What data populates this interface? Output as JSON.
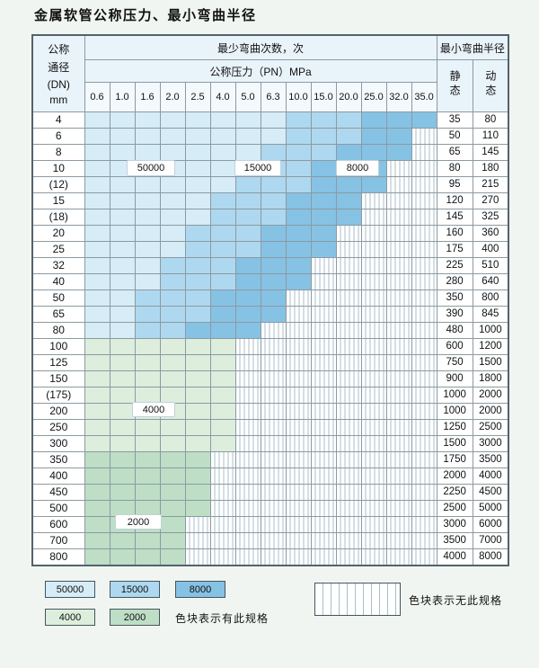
{
  "page": {
    "title": "金属软管公称压力、最小弯曲半径"
  },
  "colors": {
    "zones": {
      "50000": "#d6ecf7",
      "15000": "#aed8ef",
      "8000": "#86c2e4",
      "4000": "#ddeedd",
      "2000": "#bedec6"
    },
    "hatch_line": "#a9bfca",
    "grid_line": "#8c9aa2",
    "header_bg": "#e9f3fa",
    "page_bg": "#f1f5f1"
  },
  "table": {
    "header": {
      "dn_lines": [
        "公称",
        "通径",
        "(DN)",
        "mm"
      ],
      "bend_times_title": "最少弯曲次数，次",
      "pressure_title": "公称压力（PN）MPa",
      "pressures": [
        "0.6",
        "1.0",
        "1.6",
        "2.0",
        "2.5",
        "4.0",
        "5.0",
        "6.3",
        "10.0",
        "15.0",
        "20.0",
        "25.0",
        "32.0",
        "35.0"
      ],
      "radius_title": "最小弯曲半径",
      "static_label": "静态",
      "dynamic_label": "动态"
    },
    "rows": [
      {
        "dn": "4",
        "static": "35",
        "dynamic": "80",
        "zones": [
          [
            "50000",
            1,
            8
          ],
          [
            "15000",
            9,
            11
          ],
          [
            "8000",
            12,
            14
          ]
        ]
      },
      {
        "dn": "6",
        "static": "50",
        "dynamic": "110",
        "zones": [
          [
            "50000",
            1,
            8
          ],
          [
            "15000",
            9,
            11
          ],
          [
            "8000",
            12,
            13
          ]
        ]
      },
      {
        "dn": "8",
        "static": "65",
        "dynamic": "145",
        "zones": [
          [
            "50000",
            1,
            7
          ],
          [
            "15000",
            8,
            10
          ],
          [
            "8000",
            11,
            13
          ]
        ]
      },
      {
        "dn": "10",
        "static": "80",
        "dynamic": "180",
        "zones": [
          [
            "50000",
            1,
            6
          ],
          [
            "15000",
            7,
            9
          ],
          [
            "8000",
            10,
            12
          ]
        ]
      },
      {
        "dn": "(12)",
        "static": "95",
        "dynamic": "215",
        "zones": [
          [
            "50000",
            1,
            6
          ],
          [
            "15000",
            7,
            9
          ],
          [
            "8000",
            10,
            12
          ]
        ]
      },
      {
        "dn": "15",
        "static": "120",
        "dynamic": "270",
        "zones": [
          [
            "50000",
            1,
            5
          ],
          [
            "15000",
            6,
            8
          ],
          [
            "8000",
            9,
            11
          ]
        ]
      },
      {
        "dn": "(18)",
        "static": "145",
        "dynamic": "325",
        "zones": [
          [
            "50000",
            1,
            5
          ],
          [
            "15000",
            6,
            8
          ],
          [
            "8000",
            9,
            11
          ]
        ]
      },
      {
        "dn": "20",
        "static": "160",
        "dynamic": "360",
        "zones": [
          [
            "50000",
            1,
            4
          ],
          [
            "15000",
            5,
            7
          ],
          [
            "8000",
            8,
            10
          ]
        ]
      },
      {
        "dn": "25",
        "static": "175",
        "dynamic": "400",
        "zones": [
          [
            "50000",
            1,
            4
          ],
          [
            "15000",
            5,
            7
          ],
          [
            "8000",
            8,
            10
          ]
        ]
      },
      {
        "dn": "32",
        "static": "225",
        "dynamic": "510",
        "zones": [
          [
            "50000",
            1,
            3
          ],
          [
            "15000",
            4,
            6
          ],
          [
            "8000",
            7,
            9
          ]
        ]
      },
      {
        "dn": "40",
        "static": "280",
        "dynamic": "640",
        "zones": [
          [
            "50000",
            1,
            3
          ],
          [
            "15000",
            4,
            6
          ],
          [
            "8000",
            7,
            9
          ]
        ]
      },
      {
        "dn": "50",
        "static": "350",
        "dynamic": "800",
        "zones": [
          [
            "50000",
            1,
            2
          ],
          [
            "15000",
            3,
            5
          ],
          [
            "8000",
            6,
            8
          ]
        ]
      },
      {
        "dn": "65",
        "static": "390",
        "dynamic": "845",
        "zones": [
          [
            "50000",
            1,
            2
          ],
          [
            "15000",
            3,
            5
          ],
          [
            "8000",
            6,
            8
          ]
        ]
      },
      {
        "dn": "80",
        "static": "480",
        "dynamic": "1000",
        "zones": [
          [
            "50000",
            1,
            2
          ],
          [
            "15000",
            3,
            4
          ],
          [
            "8000",
            5,
            7
          ]
        ]
      },
      {
        "dn": "100",
        "static": "600",
        "dynamic": "1200",
        "zones": [
          [
            "4000",
            1,
            6
          ]
        ]
      },
      {
        "dn": "125",
        "static": "750",
        "dynamic": "1500",
        "zones": [
          [
            "4000",
            1,
            6
          ]
        ]
      },
      {
        "dn": "150",
        "static": "900",
        "dynamic": "1800",
        "zones": [
          [
            "4000",
            1,
            6
          ]
        ]
      },
      {
        "dn": "(175)",
        "static": "1000",
        "dynamic": "2000",
        "zones": [
          [
            "4000",
            1,
            6
          ]
        ]
      },
      {
        "dn": "200",
        "static": "1000",
        "dynamic": "2000",
        "zones": [
          [
            "4000",
            1,
            6
          ]
        ]
      },
      {
        "dn": "250",
        "static": "1250",
        "dynamic": "2500",
        "zones": [
          [
            "4000",
            1,
            6
          ]
        ]
      },
      {
        "dn": "300",
        "static": "1500",
        "dynamic": "3000",
        "zones": [
          [
            "4000",
            1,
            6
          ]
        ]
      },
      {
        "dn": "350",
        "static": "1750",
        "dynamic": "3500",
        "zones": [
          [
            "2000",
            1,
            5
          ]
        ]
      },
      {
        "dn": "400",
        "static": "2000",
        "dynamic": "4000",
        "zones": [
          [
            "2000",
            1,
            5
          ]
        ]
      },
      {
        "dn": "450",
        "static": "2250",
        "dynamic": "4500",
        "zones": [
          [
            "2000",
            1,
            5
          ]
        ]
      },
      {
        "dn": "500",
        "static": "2500",
        "dynamic": "5000",
        "zones": [
          [
            "2000",
            1,
            5
          ]
        ]
      },
      {
        "dn": "600",
        "static": "3000",
        "dynamic": "6000",
        "zones": [
          [
            "2000",
            1,
            4
          ]
        ]
      },
      {
        "dn": "700",
        "static": "3500",
        "dynamic": "7000",
        "zones": [
          [
            "2000",
            1,
            4
          ]
        ]
      },
      {
        "dn": "800",
        "static": "4000",
        "dynamic": "8000",
        "zones": [
          [
            "2000",
            1,
            4
          ]
        ]
      }
    ]
  },
  "overlays": {
    "label_50000": "50000",
    "label_15000": "15000",
    "label_8000": "8000",
    "label_4000": "4000",
    "label_2000": "2000"
  },
  "legend": {
    "box_50000": "50000",
    "box_15000": "15000",
    "box_8000": "8000",
    "box_4000": "4000",
    "box_2000": "2000",
    "has_spec_text": "色块表示有此规格",
    "no_spec_text": "色块表示无此规格"
  }
}
